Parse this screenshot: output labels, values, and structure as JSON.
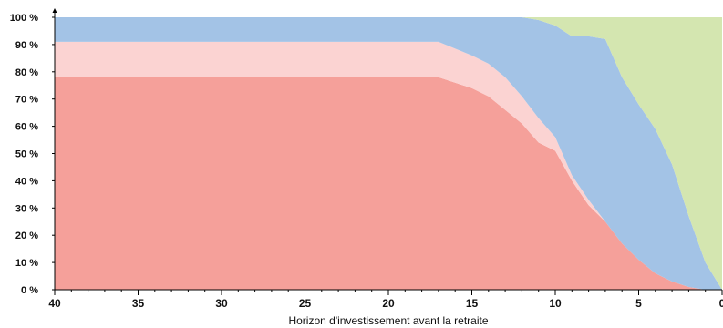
{
  "chart_data": {
    "type": "area",
    "stacked": true,
    "xlabel": "Horizon d'investissement avant la retraite",
    "ylabel": "",
    "x_reversed": true,
    "xlim": [
      40,
      0
    ],
    "ylim": [
      0,
      100
    ],
    "x_ticks": [
      40,
      35,
      30,
      25,
      20,
      15,
      10,
      5,
      0
    ],
    "x_tick_labels": [
      "40",
      "35",
      "30",
      "25",
      "20",
      "15",
      "10",
      "5",
      "0"
    ],
    "y_ticks": [
      0,
      10,
      20,
      30,
      40,
      50,
      60,
      70,
      80,
      90,
      100
    ],
    "y_tick_labels": [
      "0 %",
      "10 %",
      "20 %",
      "30 %",
      "40 %",
      "50 %",
      "60 %",
      "70 %",
      "80 %",
      "90 %",
      "100 %"
    ],
    "grid": false,
    "legend": "none",
    "x": [
      40,
      17,
      15,
      14,
      13,
      12,
      11,
      10,
      9,
      8,
      7,
      6,
      5,
      4,
      3,
      2,
      1,
      0
    ],
    "series": [
      {
        "color": "#f5a09a",
        "values": [
          78,
          78,
          74,
          71,
          66,
          61,
          54,
          51,
          40,
          31,
          25,
          17,
          11,
          6,
          3,
          1,
          0,
          0
        ]
      },
      {
        "color": "#fbd3d2",
        "values": [
          13,
          13,
          12,
          12,
          12,
          10,
          9,
          5,
          2,
          2,
          0,
          0,
          0,
          0,
          0,
          0,
          0,
          0
        ]
      },
      {
        "color": "#a3c3e6",
        "values": [
          9,
          9,
          14,
          17,
          22,
          29,
          36,
          41,
          51,
          60,
          67,
          61,
          57,
          53,
          43,
          26,
          10,
          0
        ]
      },
      {
        "color": "#d4e6b0",
        "values": [
          0,
          0,
          0,
          0,
          0,
          0,
          1,
          3,
          7,
          7,
          8,
          22,
          32,
          41,
          54,
          73,
          90,
          100
        ]
      }
    ]
  }
}
